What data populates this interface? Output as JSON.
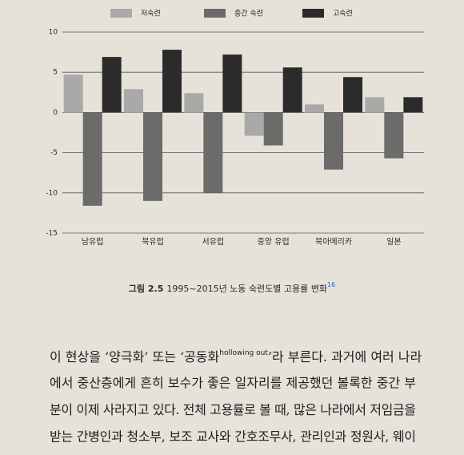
{
  "chart_data": {
    "type": "bar",
    "categories": [
      "남유럽",
      "북유럽",
      "서유럽",
      "중앙 유럽",
      "북아메리카",
      "일본"
    ],
    "series": [
      {
        "name": "저숙련",
        "color": "#a9a9a7",
        "values": [
          4.7,
          2.9,
          2.4,
          -2.9,
          1.0,
          1.9
        ]
      },
      {
        "name": "중간 숙련",
        "color": "#6b6b6a",
        "values": [
          -11.6,
          -11.0,
          -10.0,
          -4.1,
          -7.1,
          -5.7
        ]
      },
      {
        "name": "고숙련",
        "color": "#2b2b2b",
        "values": [
          6.9,
          7.8,
          7.2,
          5.6,
          4.4,
          1.9
        ]
      }
    ],
    "ylim": [
      -15,
      10
    ],
    "yticks": [
      -15,
      -10,
      -5,
      0,
      5,
      10
    ],
    "grid": true
  },
  "caption": {
    "label": "그림 2.5",
    "text": "1995~2015년 노동 숙련도별 고용률 변화",
    "note": "16"
  },
  "body": {
    "first_line": [
      "이 현상을 ‘양극화’ 또는 ‘공동화",
      "hollowing out",
      "’라 부른다. 과거에 여러 나라"
    ],
    "lines": [
      "에서 중산층에게 흔히 보수가 좋은 일자리를 제공했던 볼록한 중간 부",
      "분이 이제 사라지고 있다. 전체 고용률로 볼 때, 많은 나라에서 저임금을",
      "받는 간병인과 청소부, 보조 교사와 간호조무사, 관리인과 정원사, 웨이"
    ]
  }
}
